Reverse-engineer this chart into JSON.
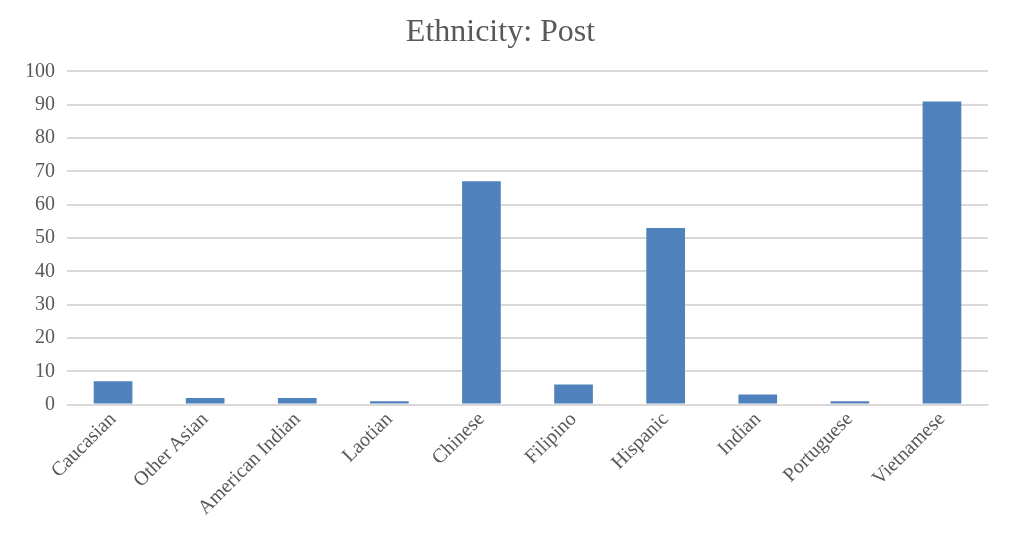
{
  "chart_data": {
    "type": "bar",
    "title": "Ethnicity: Post",
    "categories": [
      "Caucasian",
      "Other Asian",
      "American Indian",
      "Laotian",
      "Chinese",
      "Filipino",
      "Hispanic",
      "Indian",
      "Portuguese",
      "Vietnamese"
    ],
    "values": [
      7,
      2,
      2,
      1,
      67,
      6,
      53,
      3,
      1,
      91
    ],
    "color": "#4f81bd",
    "ylim": [
      0,
      100
    ],
    "yticks": [
      0,
      10,
      20,
      30,
      40,
      50,
      60,
      70,
      80,
      90,
      100
    ],
    "grid": "y"
  }
}
